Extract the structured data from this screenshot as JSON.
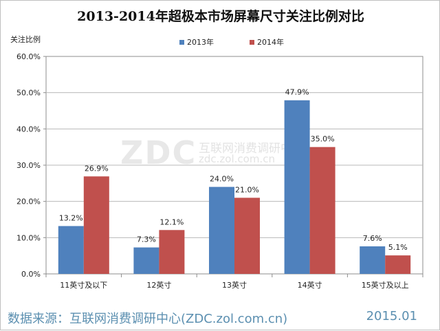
{
  "chart_data": {
    "type": "bar",
    "title": "2013-2014年超极本市场屏幕尺寸关注比例对比",
    "ylabel": "关注比例",
    "xlabel": "",
    "ylim": [
      0,
      60
    ],
    "yticks": [
      "0.0%",
      "10.0%",
      "20.0%",
      "30.0%",
      "40.0%",
      "50.0%",
      "60.0%"
    ],
    "categories": [
      "11英寸及以下",
      "12英寸",
      "13英寸",
      "14英寸",
      "15英寸及以上"
    ],
    "series": [
      {
        "name": "2013年",
        "color": "#4f81bd",
        "values": [
          13.2,
          7.3,
          24.0,
          47.9,
          7.6
        ],
        "labels": [
          "13.2%",
          "7.3%",
          "24.0%",
          "47.9%",
          "7.6%"
        ]
      },
      {
        "name": "2014年",
        "color": "#c0504d",
        "values": [
          26.9,
          12.1,
          21.0,
          35.0,
          5.1
        ],
        "labels": [
          "26.9%",
          "12.1%",
          "21.0%",
          "35.0%",
          "5.1%"
        ]
      }
    ],
    "grid": true,
    "legend_position": "top-center"
  },
  "watermark": {
    "logo": "ZDC",
    "text": "互联网消费调研中心",
    "url": "zdc.zol.com.cn"
  },
  "footer": {
    "source": "数据来源：互联网消费调研中心(ZDC.zol.com.cn)",
    "date": "2015.01"
  }
}
